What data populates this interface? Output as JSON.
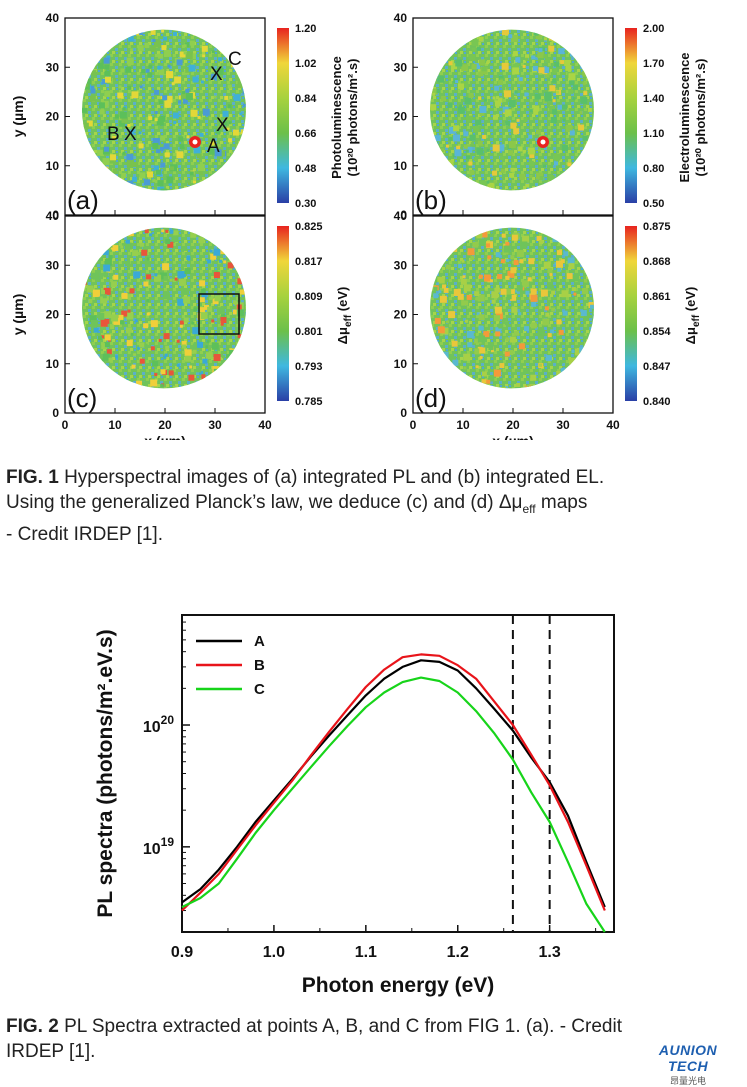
{
  "fig1": {
    "panels": [
      {
        "letter": "(a)",
        "cb_title_line1": "Photoluminescence",
        "cb_title_line2": "(10²⁰ photons/m².s)",
        "cb_ticks": [
          "1.20",
          "1.02",
          "0.84",
          "0.66",
          "0.48",
          "0.30"
        ],
        "hot_spot": true
      },
      {
        "letter": "(b)",
        "cb_title_line1": "Electroluminescence",
        "cb_title_line2": "(10²⁰ photons/m².s)",
        "cb_ticks": [
          "2.00",
          "1.70",
          "1.40",
          "1.10",
          "0.80",
          "0.50"
        ],
        "hot_spot": true
      },
      {
        "letter": "(c)",
        "cb_title_line1": "Δμ",
        "cb_title_sub": "eff",
        "cb_title_tail": " (eV)",
        "cb_ticks": [
          "0.825",
          "0.817",
          "0.809",
          "0.801",
          "0.793",
          "0.785"
        ],
        "hot_spot": false
      },
      {
        "letter": "(d)",
        "cb_title_line1": "Δμ",
        "cb_title_sub": "eff",
        "cb_title_tail": " (eV)",
        "cb_ticks": [
          "0.875",
          "0.868",
          "0.861",
          "0.854",
          "0.847",
          "0.840"
        ],
        "hot_spot": false
      }
    ],
    "y_ticks": [
      "40",
      "30",
      "20",
      "10",
      "0"
    ],
    "x_ticks": [
      "0",
      "10",
      "20",
      "30",
      "40"
    ],
    "y_label": "y (µm)",
    "x_label": "x (µm)",
    "points": [
      {
        "label": "A",
        "marker": "X"
      },
      {
        "label": "B",
        "marker": "X"
      },
      {
        "label": "C",
        "marker": "X"
      }
    ],
    "colors": {
      "red": "#e8312a",
      "yellow": "#f2e33a",
      "green": "#6fc04a",
      "cyan": "#3fb8d8",
      "blue": "#2c50b8"
    }
  },
  "caption1": {
    "lead": "FIG. 1",
    "line1": " Hyperspectral images of (a) integrated PL and (b) integrated EL.",
    "line2a": "Using the generalized Planck’s law, we deduce (c) and (d) Δμ",
    "line2sub": "eff",
    "line2b": " maps",
    "line3": "- Credit IRDEP [1]."
  },
  "chart_data": {
    "type": "line",
    "xlabel": "Photon energy (eV)",
    "ylabel": "PL spectra (photons/m².eV.s)",
    "y_scale": "log",
    "xlim": [
      0.9,
      1.37
    ],
    "ylim": [
      2e+18,
      8e+20
    ],
    "x_ticks": [
      "0.9",
      "1.0",
      "1.1",
      "1.2",
      "1.3"
    ],
    "y_ticks": [
      {
        "base": "10",
        "exp": "20"
      },
      {
        "base": "10",
        "exp": "19"
      }
    ],
    "vlines": [
      1.26,
      1.3
    ],
    "x": [
      0.9,
      0.92,
      0.94,
      0.96,
      0.98,
      1.0,
      1.02,
      1.04,
      1.06,
      1.08,
      1.1,
      1.12,
      1.14,
      1.16,
      1.18,
      1.2,
      1.22,
      1.24,
      1.26,
      1.28,
      1.3,
      1.32,
      1.34,
      1.36
    ],
    "series": [
      {
        "name": "A",
        "color": "#000000",
        "values": [
          3.5e+18,
          4.5e+18,
          6.5e+18,
          1e+19,
          1.6e+19,
          2.4e+19,
          3.6e+19,
          5.5e+19,
          8.2e+19,
          1.2e+20,
          1.75e+20,
          2.4e+20,
          3e+20,
          3.4e+20,
          3.3e+20,
          2.8e+20,
          2e+20,
          1.35e+20,
          9e+19,
          5.4e+19,
          3.4e+19,
          1.8e+19,
          7.5e+18,
          3.2e+18
        ]
      },
      {
        "name": "B",
        "color": "#e8141a",
        "values": [
          3e+18,
          4.2e+18,
          6e+18,
          9.5e+18,
          1.5e+19,
          2.3e+19,
          3.5e+19,
          5.6e+19,
          8.8e+19,
          1.35e+20,
          2.05e+20,
          2.85e+20,
          3.6e+20,
          3.8e+20,
          3.7e+20,
          3.1e+20,
          2.4e+20,
          1.55e+20,
          1e+20,
          5.7e+19,
          3.2e+19,
          1.6e+19,
          7e+18,
          3e+18
        ]
      },
      {
        "name": "C",
        "color": "#17d41a",
        "values": [
          3.2e+18,
          3.8e+18,
          5e+18,
          8e+18,
          1.3e+19,
          2e+19,
          3e+19,
          4.5e+19,
          6.7e+19,
          9.8e+19,
          1.4e+20,
          1.85e+20,
          2.25e+20,
          2.45e+20,
          2.3e+20,
          1.85e+20,
          1.3e+20,
          8.5e+19,
          5.2e+19,
          2.8e+19,
          1.6e+19,
          7.5e+18,
          3.4e+18,
          2e+18
        ]
      }
    ]
  },
  "caption2": {
    "lead": "FIG. 2",
    "line1": "  PL Spectra extracted at points A, B, and C from FIG 1. (a). - Credit",
    "line2": "IRDEP [1]."
  },
  "logo": {
    "name": "AUNION TECH",
    "sub": "昂量光电"
  }
}
